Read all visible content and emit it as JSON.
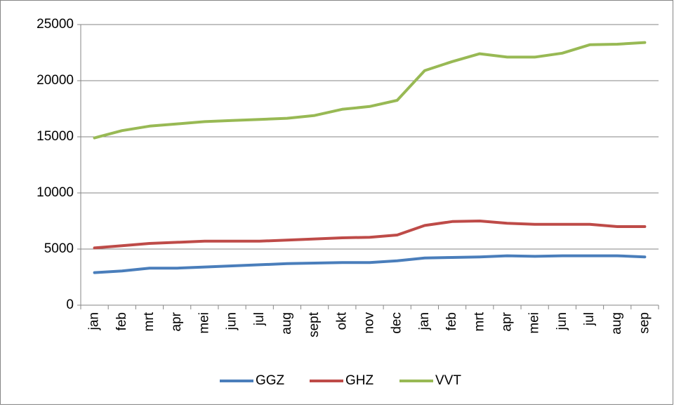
{
  "chart_data": {
    "type": "line",
    "categories": [
      "jan",
      "feb",
      "mrt",
      "apr",
      "mei",
      "jun",
      "jul",
      "aug",
      "sept",
      "okt",
      "nov",
      "dec",
      "jan",
      "feb",
      "mrt",
      "apr",
      "mei",
      "jun",
      "jul",
      "aug",
      "sep"
    ],
    "series": [
      {
        "name": "GGZ",
        "color": "#4a7ebb",
        "values": [
          2900,
          3050,
          3300,
          3300,
          3400,
          3500,
          3600,
          3700,
          3750,
          3800,
          3800,
          3950,
          4200,
          4250,
          4300,
          4400,
          4350,
          4400,
          4400,
          4400,
          4300
        ]
      },
      {
        "name": "GHZ",
        "color": "#be4b48",
        "values": [
          5100,
          5300,
          5500,
          5600,
          5700,
          5700,
          5700,
          5800,
          5900,
          6000,
          6050,
          6250,
          7100,
          7450,
          7500,
          7300,
          7200,
          7200,
          7200,
          7000,
          7000
        ]
      },
      {
        "name": "VVT",
        "color": "#98b954",
        "values": [
          14900,
          15550,
          15950,
          16150,
          16350,
          16450,
          16550,
          16650,
          16900,
          17450,
          17700,
          18250,
          20900,
          21700,
          22400,
          22100,
          22100,
          22450,
          23200,
          23250,
          23400
        ]
      }
    ],
    "ylim": [
      0,
      25000
    ],
    "yticks": [
      0,
      5000,
      10000,
      15000,
      20000,
      25000
    ],
    "grid": true,
    "legend": "bottom"
  }
}
